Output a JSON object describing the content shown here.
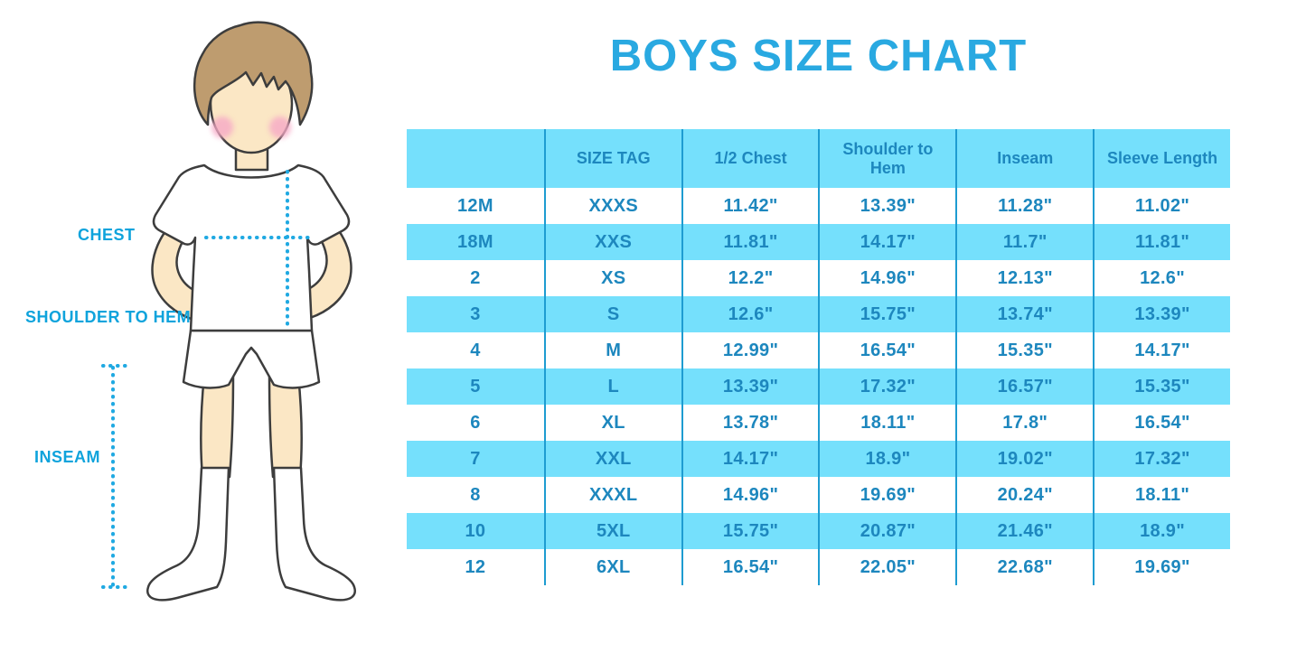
{
  "title": "BOYS SIZE CHART",
  "figure": {
    "labels": {
      "chest": "CHEST",
      "shoulder_to_hem": "SHOULDER TO HEM",
      "inseam": "INSEAM"
    }
  },
  "chart_data": {
    "type": "table",
    "title": "BOYS SIZE CHART",
    "columns": [
      "",
      "SIZE TAG",
      "1/2 Chest",
      "Shoulder to Hem",
      "Inseam",
      "Sleeve Length"
    ],
    "rows": [
      [
        "12M",
        "XXXS",
        "11.42\"",
        "13.39\"",
        "11.28\"",
        "11.02\""
      ],
      [
        "18M",
        "XXS",
        "11.81\"",
        "14.17\"",
        "11.7\"",
        "11.81\""
      ],
      [
        "2",
        "XS",
        "12.2\"",
        "14.96\"",
        "12.13\"",
        "12.6\""
      ],
      [
        "3",
        "S",
        "12.6\"",
        "15.75\"",
        "13.74\"",
        "13.39\""
      ],
      [
        "4",
        "M",
        "12.99\"",
        "16.54\"",
        "15.35\"",
        "14.17\""
      ],
      [
        "5",
        "L",
        "13.39\"",
        "17.32\"",
        "16.57\"",
        "15.35\""
      ],
      [
        "6",
        "XL",
        "13.78\"",
        "18.11\"",
        "17.8\"",
        "16.54\""
      ],
      [
        "7",
        "XXL",
        "14.17\"",
        "18.9\"",
        "19.02\"",
        "17.32\""
      ],
      [
        "8",
        "XXXL",
        "14.96\"",
        "19.69\"",
        "20.24\"",
        "18.11\""
      ],
      [
        "10",
        "5XL",
        "15.75\"",
        "20.87\"",
        "21.46\"",
        "18.9\""
      ],
      [
        "12",
        "6XL",
        "16.54\"",
        "22.05\"",
        "22.68\"",
        "19.69\""
      ]
    ],
    "units": "inches",
    "header_background": "#75E0FC",
    "row_striping": [
      "#FFFFFF",
      "#75E0FC"
    ]
  },
  "colors": {
    "title_blue": "#29A9E1",
    "label_blue": "#0EA3DC",
    "cell_text": "#1D87BE",
    "band_cyan": "#75E0FC",
    "column_line": "#1E9CD1",
    "dotted_line": "#1FA9E2",
    "skin": "#FBE7C5",
    "hair": "#BE9C6F",
    "cheek": "#F6A9C5",
    "outline": "#3D3D3D"
  }
}
